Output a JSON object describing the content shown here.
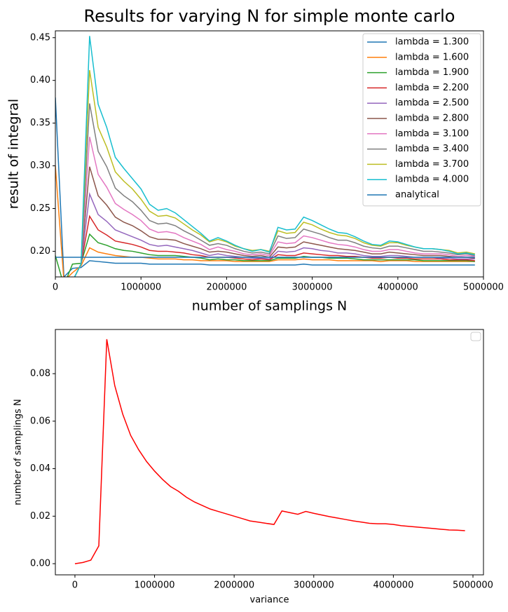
{
  "chart_data": [
    {
      "type": "line",
      "title": "Results for varying N for simple monte carlo",
      "xlabel": "number of samplings N",
      "ylabel": "result of integral",
      "x": [
        0,
        100000,
        200000,
        300000,
        400000,
        500000,
        600000,
        700000,
        800000,
        900000,
        1000000,
        1100000,
        1200000,
        1300000,
        1400000,
        1500000,
        1600000,
        1700000,
        1800000,
        1900000,
        2000000,
        2100000,
        2200000,
        2300000,
        2400000,
        2500000,
        2600000,
        2700000,
        2800000,
        2900000,
        3000000,
        3100000,
        3200000,
        3300000,
        3400000,
        3500000,
        3600000,
        3700000,
        3800000,
        3900000,
        4000000,
        4100000,
        4200000,
        4300000,
        4400000,
        4500000,
        4600000,
        4700000,
        4800000,
        4900000
      ],
      "xlim": [
        0,
        5000000
      ],
      "xticks": [
        0,
        1000000,
        2000000,
        3000000,
        4000000,
        5000000
      ],
      "ylim": [
        0.17,
        0.458
      ],
      "yticks": [
        {
          "value": 0.2,
          "label": "0.20"
        },
        0.25,
        {
          "value": 0.3,
          "label": "0.30"
        },
        0.35,
        {
          "value": 0.4,
          "label": "0.40"
        },
        0.45
      ],
      "legend": "upper right",
      "series": [
        {
          "name": "lambda = 1.300",
          "color": "#1f77b4",
          "values": [
            0.38,
            0.17,
            0.18,
            0.181,
            0.189,
            0.188,
            0.187,
            0.186,
            0.186,
            0.186,
            0.186,
            0.185,
            0.185,
            0.185,
            0.185,
            0.185,
            0.185,
            0.185,
            0.184,
            0.184,
            0.184,
            0.184,
            0.184,
            0.184,
            0.184,
            0.184,
            0.184,
            0.184,
            0.184,
            0.185,
            0.184,
            0.184,
            0.184,
            0.184,
            0.184,
            0.184,
            0.184,
            0.184,
            0.184,
            0.184,
            0.184,
            0.184,
            0.184,
            0.184,
            0.184,
            0.184,
            0.184,
            0.184,
            0.184,
            0.184
          ]
        },
        {
          "name": "lambda = 1.600",
          "color": "#ff7f0e",
          "values": [
            0.3,
            0.165,
            0.175,
            0.183,
            0.204,
            0.199,
            0.197,
            0.195,
            0.194,
            0.193,
            0.193,
            0.192,
            0.191,
            0.191,
            0.191,
            0.19,
            0.19,
            0.189,
            0.189,
            0.189,
            0.189,
            0.188,
            0.188,
            0.188,
            0.188,
            0.188,
            0.19,
            0.19,
            0.19,
            0.191,
            0.19,
            0.19,
            0.19,
            0.189,
            0.189,
            0.189,
            0.189,
            0.189,
            0.188,
            0.189,
            0.189,
            0.189,
            0.188,
            0.188,
            0.188,
            0.188,
            0.188,
            0.188,
            0.188,
            0.188
          ]
        },
        {
          "name": "lambda = 1.900",
          "color": "#2ca02c",
          "values": [
            0.195,
            0.16,
            0.185,
            0.186,
            0.22,
            0.21,
            0.207,
            0.203,
            0.201,
            0.2,
            0.198,
            0.196,
            0.195,
            0.195,
            0.195,
            0.194,
            0.193,
            0.192,
            0.19,
            0.191,
            0.19,
            0.19,
            0.189,
            0.189,
            0.189,
            0.189,
            0.192,
            0.192,
            0.192,
            0.194,
            0.193,
            0.193,
            0.192,
            0.192,
            0.192,
            0.191,
            0.19,
            0.19,
            0.19,
            0.19,
            0.19,
            0.19,
            0.19,
            0.189,
            0.189,
            0.189,
            0.189,
            0.189,
            0.189,
            0.188
          ]
        },
        {
          "name": "lambda = 2.200",
          "color": "#d62728",
          "values": [
            0.16,
            0.15,
            0.165,
            0.185,
            0.241,
            0.225,
            0.219,
            0.212,
            0.21,
            0.208,
            0.205,
            0.201,
            0.2,
            0.2,
            0.199,
            0.198,
            0.196,
            0.195,
            0.193,
            0.193,
            0.193,
            0.192,
            0.191,
            0.19,
            0.191,
            0.19,
            0.196,
            0.195,
            0.195,
            0.198,
            0.197,
            0.196,
            0.195,
            0.195,
            0.194,
            0.194,
            0.193,
            0.192,
            0.192,
            0.193,
            0.192,
            0.192,
            0.191,
            0.191,
            0.191,
            0.191,
            0.19,
            0.19,
            0.19,
            0.189
          ]
        },
        {
          "name": "lambda = 2.500",
          "color": "#9467bd",
          "values": [
            0.16,
            0.15,
            0.165,
            0.185,
            0.267,
            0.243,
            0.235,
            0.225,
            0.221,
            0.217,
            0.213,
            0.208,
            0.206,
            0.207,
            0.205,
            0.203,
            0.201,
            0.198,
            0.195,
            0.197,
            0.195,
            0.194,
            0.193,
            0.192,
            0.192,
            0.191,
            0.2,
            0.199,
            0.2,
            0.204,
            0.203,
            0.201,
            0.2,
            0.198,
            0.198,
            0.197,
            0.195,
            0.194,
            0.194,
            0.195,
            0.195,
            0.194,
            0.193,
            0.193,
            0.193,
            0.192,
            0.192,
            0.191,
            0.191,
            0.191
          ]
        },
        {
          "name": "lambda = 2.800",
          "color": "#8c564b",
          "values": [
            0.16,
            0.15,
            0.165,
            0.185,
            0.299,
            0.265,
            0.254,
            0.24,
            0.234,
            0.23,
            0.224,
            0.217,
            0.214,
            0.214,
            0.213,
            0.209,
            0.206,
            0.203,
            0.199,
            0.2,
            0.199,
            0.197,
            0.195,
            0.194,
            0.195,
            0.193,
            0.205,
            0.204,
            0.205,
            0.211,
            0.209,
            0.207,
            0.205,
            0.203,
            0.202,
            0.201,
            0.199,
            0.197,
            0.197,
            0.199,
            0.198,
            0.197,
            0.196,
            0.195,
            0.195,
            0.195,
            0.194,
            0.193,
            0.193,
            0.192
          ]
        },
        {
          "name": "lambda = 3.100",
          "color": "#e377c2",
          "values": [
            0.16,
            0.15,
            0.165,
            0.185,
            0.334,
            0.29,
            0.275,
            0.256,
            0.249,
            0.243,
            0.236,
            0.226,
            0.222,
            0.223,
            0.221,
            0.216,
            0.212,
            0.208,
            0.202,
            0.205,
            0.202,
            0.2,
            0.197,
            0.196,
            0.197,
            0.195,
            0.211,
            0.209,
            0.21,
            0.218,
            0.216,
            0.213,
            0.21,
            0.208,
            0.207,
            0.205,
            0.202,
            0.2,
            0.2,
            0.202,
            0.202,
            0.2,
            0.198,
            0.197,
            0.197,
            0.197,
            0.196,
            0.194,
            0.195,
            0.194
          ]
        },
        {
          "name": "lambda = 3.400",
          "color": "#7f7f7f",
          "values": [
            0.16,
            0.15,
            0.165,
            0.185,
            0.373,
            0.317,
            0.299,
            0.274,
            0.265,
            0.258,
            0.248,
            0.236,
            0.232,
            0.233,
            0.23,
            0.224,
            0.219,
            0.213,
            0.207,
            0.209,
            0.207,
            0.203,
            0.2,
            0.198,
            0.199,
            0.197,
            0.218,
            0.215,
            0.216,
            0.226,
            0.223,
            0.22,
            0.216,
            0.213,
            0.213,
            0.21,
            0.206,
            0.204,
            0.203,
            0.206,
            0.206,
            0.204,
            0.202,
            0.2,
            0.2,
            0.199,
            0.198,
            0.196,
            0.197,
            0.195
          ]
        },
        {
          "name": "lambda = 3.700",
          "color": "#bcbd22",
          "values": [
            0.16,
            0.15,
            0.165,
            0.185,
            0.412,
            0.345,
            0.322,
            0.293,
            0.282,
            0.273,
            0.261,
            0.247,
            0.241,
            0.242,
            0.239,
            0.232,
            0.225,
            0.219,
            0.211,
            0.214,
            0.211,
            0.206,
            0.203,
            0.201,
            0.202,
            0.2,
            0.224,
            0.221,
            0.222,
            0.234,
            0.231,
            0.226,
            0.222,
            0.219,
            0.218,
            0.215,
            0.21,
            0.207,
            0.206,
            0.21,
            0.21,
            0.207,
            0.205,
            0.203,
            0.203,
            0.202,
            0.201,
            0.198,
            0.199,
            0.197
          ]
        },
        {
          "name": "lambda = 4.000",
          "color": "#17becf",
          "values": [
            0.16,
            0.15,
            0.165,
            0.185,
            0.452,
            0.372,
            0.345,
            0.31,
            0.297,
            0.285,
            0.273,
            0.255,
            0.248,
            0.25,
            0.245,
            0.237,
            0.229,
            0.221,
            0.212,
            0.216,
            0.212,
            0.207,
            0.203,
            0.2,
            0.202,
            0.199,
            0.228,
            0.225,
            0.226,
            0.24,
            0.236,
            0.231,
            0.226,
            0.222,
            0.221,
            0.217,
            0.212,
            0.208,
            0.207,
            0.212,
            0.211,
            0.208,
            0.205,
            0.203,
            0.203,
            0.202,
            0.2,
            0.197,
            0.198,
            0.196
          ]
        },
        {
          "name": "analytical",
          "color": "#1f77b4",
          "values": [
            0.193,
            0.193,
            0.193,
            0.193,
            0.193,
            0.193,
            0.193,
            0.193,
            0.193,
            0.193,
            0.193,
            0.193,
            0.193,
            0.193,
            0.193,
            0.193,
            0.193,
            0.193,
            0.193,
            0.193,
            0.193,
            0.193,
            0.193,
            0.193,
            0.193,
            0.193,
            0.193,
            0.193,
            0.193,
            0.193,
            0.193,
            0.193,
            0.193,
            0.193,
            0.193,
            0.193,
            0.193,
            0.193,
            0.193,
            0.193,
            0.193,
            0.193,
            0.193,
            0.193,
            0.193,
            0.193,
            0.193,
            0.193,
            0.193,
            0.193
          ]
        }
      ]
    },
    {
      "type": "line",
      "xlabel": "variance",
      "ylabel": "number of samplings N",
      "x": [
        0,
        100000,
        200000,
        300000,
        400000,
        500000,
        600000,
        700000,
        800000,
        900000,
        1000000,
        1100000,
        1200000,
        1300000,
        1400000,
        1500000,
        1600000,
        1700000,
        1800000,
        1900000,
        2000000,
        2100000,
        2200000,
        2300000,
        2400000,
        2500000,
        2600000,
        2700000,
        2800000,
        2900000,
        3000000,
        3100000,
        3200000,
        3300000,
        3400000,
        3500000,
        3600000,
        3700000,
        3800000,
        3900000,
        4000000,
        4100000,
        4200000,
        4300000,
        4400000,
        4500000,
        4600000,
        4700000,
        4800000,
        4900000
      ],
      "xlim": [
        -246000,
        5132000
      ],
      "xticks": [
        0,
        1000000,
        2000000,
        3000000,
        4000000,
        5000000
      ],
      "ylim": [
        -0.0047,
        0.0986
      ],
      "yticks": [
        {
          "value": 0,
          "label": "0.00"
        },
        0.02,
        0.04,
        0.06,
        0.08
      ],
      "legend": "upper right",
      "color": "#ff0000",
      "values": [
        0,
        0.0005,
        0.0015,
        0.0075,
        0.0945,
        0.075,
        0.063,
        0.054,
        0.048,
        0.043,
        0.039,
        0.0355,
        0.0325,
        0.0305,
        0.028,
        0.026,
        0.0245,
        0.023,
        0.022,
        0.021,
        0.02,
        0.019,
        0.018,
        0.0175,
        0.017,
        0.0165,
        0.0222,
        0.0215,
        0.0208,
        0.022,
        0.0212,
        0.0205,
        0.0198,
        0.0192,
        0.0186,
        0.018,
        0.0175,
        0.017,
        0.0168,
        0.0168,
        0.0165,
        0.016,
        0.0157,
        0.0154,
        0.0151,
        0.0148,
        0.0145,
        0.0142,
        0.0141,
        0.0139
      ]
    }
  ]
}
